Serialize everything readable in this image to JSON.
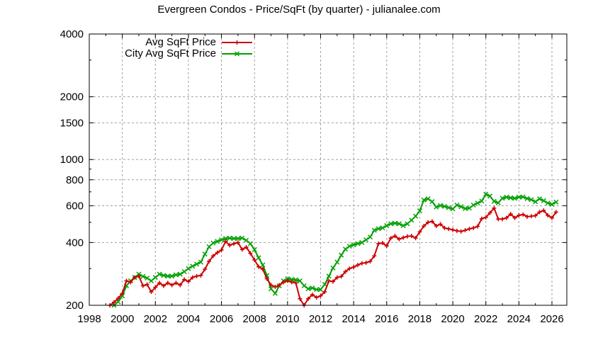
{
  "chart_data": {
    "type": "line",
    "title": "Evergreen Condos - Price/SqFt (by quarter) - julianalee.com",
    "xlabel": "",
    "ylabel": "",
    "x_range": [
      1998,
      2027
    ],
    "ylim": [
      200,
      4000
    ],
    "y_scale": "log",
    "grid": true,
    "legend_position": "top-left-inside",
    "x_ticks": [
      1998,
      2000,
      2002,
      2004,
      2006,
      2008,
      2010,
      2012,
      2014,
      2016,
      2018,
      2020,
      2022,
      2024,
      2026
    ],
    "y_ticks": [
      200,
      400,
      600,
      800,
      1000,
      1500,
      2000,
      4000
    ],
    "y_minor_ticks": [
      300,
      500,
      700,
      900,
      3000
    ],
    "series": [
      {
        "name": "Avg SqFt Price",
        "color": "#cc0000",
        "marker": "plus",
        "points": [
          [
            1999.25,
            200
          ],
          [
            1999.5,
            207
          ],
          [
            1999.75,
            216
          ],
          [
            2000.0,
            228
          ],
          [
            2000.25,
            262
          ],
          [
            2000.5,
            258
          ],
          [
            2000.75,
            272
          ],
          [
            2001.0,
            276
          ],
          [
            2001.25,
            248
          ],
          [
            2001.5,
            252
          ],
          [
            2001.75,
            232
          ],
          [
            2002.0,
            244
          ],
          [
            2002.25,
            256
          ],
          [
            2002.5,
            248
          ],
          [
            2002.75,
            256
          ],
          [
            2003.0,
            250
          ],
          [
            2003.25,
            256
          ],
          [
            2003.5,
            250
          ],
          [
            2003.75,
            266
          ],
          [
            2004.0,
            260
          ],
          [
            2004.25,
            272
          ],
          [
            2004.5,
            276
          ],
          [
            2004.75,
            278
          ],
          [
            2005.0,
            298
          ],
          [
            2005.25,
            325
          ],
          [
            2005.5,
            345
          ],
          [
            2005.75,
            358
          ],
          [
            2006.0,
            368
          ],
          [
            2006.25,
            405
          ],
          [
            2006.5,
            388
          ],
          [
            2006.75,
            395
          ],
          [
            2007.0,
            400
          ],
          [
            2007.25,
            370
          ],
          [
            2007.5,
            380
          ],
          [
            2007.75,
            355
          ],
          [
            2008.0,
            330
          ],
          [
            2008.25,
            306
          ],
          [
            2008.5,
            298
          ],
          [
            2008.75,
            268
          ],
          [
            2009.0,
            250
          ],
          [
            2009.25,
            245
          ],
          [
            2009.5,
            250
          ],
          [
            2009.75,
            258
          ],
          [
            2010.0,
            262
          ],
          [
            2010.25,
            258
          ],
          [
            2010.5,
            256
          ],
          [
            2010.75,
            215
          ],
          [
            2011.0,
            200
          ],
          [
            2011.25,
            215
          ],
          [
            2011.5,
            225
          ],
          [
            2011.75,
            218
          ],
          [
            2012.0,
            222
          ],
          [
            2012.25,
            232
          ],
          [
            2012.5,
            262
          ],
          [
            2012.75,
            260
          ],
          [
            2013.0,
            272
          ],
          [
            2013.25,
            275
          ],
          [
            2013.5,
            290
          ],
          [
            2013.75,
            300
          ],
          [
            2014.0,
            305
          ],
          [
            2014.25,
            312
          ],
          [
            2014.5,
            318
          ],
          [
            2014.75,
            320
          ],
          [
            2015.0,
            325
          ],
          [
            2015.25,
            345
          ],
          [
            2015.5,
            395
          ],
          [
            2015.75,
            398
          ],
          [
            2016.0,
            385
          ],
          [
            2016.25,
            420
          ],
          [
            2016.5,
            430
          ],
          [
            2016.75,
            415
          ],
          [
            2017.0,
            422
          ],
          [
            2017.25,
            428
          ],
          [
            2017.5,
            430
          ],
          [
            2017.75,
            420
          ],
          [
            2018.0,
            450
          ],
          [
            2018.25,
            480
          ],
          [
            2018.5,
            500
          ],
          [
            2018.75,
            505
          ],
          [
            2019.0,
            480
          ],
          [
            2019.25,
            490
          ],
          [
            2019.5,
            470
          ],
          [
            2019.75,
            465
          ],
          [
            2020.0,
            460
          ],
          [
            2020.25,
            455
          ],
          [
            2020.5,
            452
          ],
          [
            2020.75,
            458
          ],
          [
            2021.0,
            465
          ],
          [
            2021.25,
            470
          ],
          [
            2021.5,
            478
          ],
          [
            2021.75,
            520
          ],
          [
            2022.0,
            528
          ],
          [
            2022.25,
            555
          ],
          [
            2022.5,
            585
          ],
          [
            2022.75,
            518
          ],
          [
            2023.0,
            518
          ],
          [
            2023.25,
            525
          ],
          [
            2023.5,
            548
          ],
          [
            2023.75,
            525
          ],
          [
            2024.0,
            540
          ],
          [
            2024.25,
            545
          ],
          [
            2024.5,
            532
          ],
          [
            2024.75,
            535
          ],
          [
            2025.0,
            538
          ],
          [
            2025.25,
            560
          ],
          [
            2025.5,
            570
          ],
          [
            2025.75,
            540
          ],
          [
            2026.0,
            525
          ],
          [
            2026.25,
            560
          ]
        ]
      },
      {
        "name": "City Avg SqFt Price",
        "color": "#00a000",
        "marker": "cross",
        "points": [
          [
            1999.5,
            200
          ],
          [
            1999.75,
            208
          ],
          [
            2000.0,
            222
          ],
          [
            2000.25,
            248
          ],
          [
            2000.5,
            262
          ],
          [
            2000.75,
            272
          ],
          [
            2001.0,
            282
          ],
          [
            2001.25,
            275
          ],
          [
            2001.5,
            270
          ],
          [
            2001.75,
            262
          ],
          [
            2002.0,
            272
          ],
          [
            2002.25,
            282
          ],
          [
            2002.5,
            278
          ],
          [
            2002.75,
            276
          ],
          [
            2003.0,
            276
          ],
          [
            2003.25,
            280
          ],
          [
            2003.5,
            282
          ],
          [
            2003.75,
            290
          ],
          [
            2004.0,
            300
          ],
          [
            2004.25,
            308
          ],
          [
            2004.5,
            315
          ],
          [
            2004.75,
            322
          ],
          [
            2005.0,
            352
          ],
          [
            2005.25,
            382
          ],
          [
            2005.5,
            398
          ],
          [
            2005.75,
            405
          ],
          [
            2006.0,
            412
          ],
          [
            2006.25,
            418
          ],
          [
            2006.5,
            420
          ],
          [
            2006.75,
            418
          ],
          [
            2007.0,
            418
          ],
          [
            2007.25,
            420
          ],
          [
            2007.5,
            410
          ],
          [
            2007.75,
            395
          ],
          [
            2008.0,
            370
          ],
          [
            2008.25,
            338
          ],
          [
            2008.5,
            312
          ],
          [
            2008.75,
            278
          ],
          [
            2009.0,
            240
          ],
          [
            2009.25,
            228
          ],
          [
            2009.5,
            248
          ],
          [
            2009.75,
            262
          ],
          [
            2010.0,
            268
          ],
          [
            2010.25,
            266
          ],
          [
            2010.5,
            265
          ],
          [
            2010.75,
            262
          ],
          [
            2011.0,
            248
          ],
          [
            2011.25,
            240
          ],
          [
            2011.5,
            242
          ],
          [
            2011.75,
            238
          ],
          [
            2012.0,
            238
          ],
          [
            2012.25,
            252
          ],
          [
            2012.5,
            276
          ],
          [
            2012.75,
            302
          ],
          [
            2013.0,
            322
          ],
          [
            2013.25,
            348
          ],
          [
            2013.5,
            372
          ],
          [
            2013.75,
            384
          ],
          [
            2014.0,
            390
          ],
          [
            2014.25,
            395
          ],
          [
            2014.5,
            400
          ],
          [
            2014.75,
            412
          ],
          [
            2015.0,
            425
          ],
          [
            2015.25,
            458
          ],
          [
            2015.5,
            466
          ],
          [
            2015.75,
            470
          ],
          [
            2016.0,
            482
          ],
          [
            2016.25,
            492
          ],
          [
            2016.5,
            495
          ],
          [
            2016.75,
            492
          ],
          [
            2017.0,
            482
          ],
          [
            2017.25,
            492
          ],
          [
            2017.5,
            512
          ],
          [
            2017.75,
            535
          ],
          [
            2018.0,
            568
          ],
          [
            2018.25,
            640
          ],
          [
            2018.5,
            648
          ],
          [
            2018.75,
            628
          ],
          [
            2019.0,
            592
          ],
          [
            2019.25,
            602
          ],
          [
            2019.5,
            596
          ],
          [
            2019.75,
            588
          ],
          [
            2020.0,
            580
          ],
          [
            2020.25,
            605
          ],
          [
            2020.5,
            594
          ],
          [
            2020.75,
            582
          ],
          [
            2021.0,
            585
          ],
          [
            2021.25,
            605
          ],
          [
            2021.5,
            618
          ],
          [
            2021.75,
            632
          ],
          [
            2022.0,
            682
          ],
          [
            2022.25,
            668
          ],
          [
            2022.5,
            630
          ],
          [
            2022.75,
            620
          ],
          [
            2023.0,
            652
          ],
          [
            2023.25,
            660
          ],
          [
            2023.5,
            655
          ],
          [
            2023.75,
            652
          ],
          [
            2024.0,
            660
          ],
          [
            2024.25,
            662
          ],
          [
            2024.5,
            650
          ],
          [
            2024.75,
            642
          ],
          [
            2025.0,
            628
          ],
          [
            2025.25,
            648
          ],
          [
            2025.5,
            635
          ],
          [
            2025.75,
            618
          ],
          [
            2026.0,
            610
          ],
          [
            2026.25,
            625
          ]
        ]
      }
    ]
  },
  "legend": {
    "items": [
      {
        "label": "Avg SqFt Price",
        "color": "#cc0000",
        "marker": "plus"
      },
      {
        "label": "City Avg SqFt Price",
        "color": "#00a000",
        "marker": "cross"
      }
    ]
  }
}
